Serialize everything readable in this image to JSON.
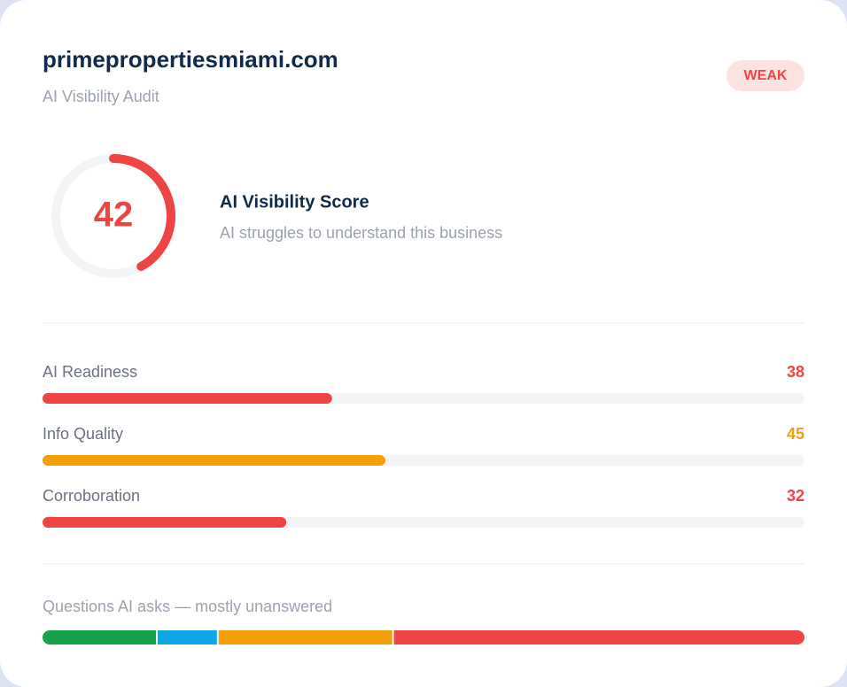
{
  "header": {
    "title": "primepropertiesmiami.com",
    "subtitle": "AI Visibility Audit",
    "badge": "WEAK"
  },
  "score": {
    "value": 42,
    "range": [
      0,
      100
    ],
    "color": "#ef4444",
    "label": "AI Visibility Score",
    "description": "AI struggles to understand this business"
  },
  "metrics": {
    "xlim": [
      0,
      100
    ],
    "items": [
      {
        "name": "AI Readiness",
        "value": 38,
        "color": "#ef4444"
      },
      {
        "name": "Info Quality",
        "value": 45,
        "color": "#f59e0b"
      },
      {
        "name": "Corroboration",
        "value": 32,
        "color": "#ef4444"
      }
    ]
  },
  "questions": {
    "label": "Questions AI asks — mostly unanswered",
    "xlim": [
      0,
      100
    ],
    "segments": [
      {
        "value": 15,
        "color": "#16a34a"
      },
      {
        "value": 8,
        "color": "#0ea5e9"
      },
      {
        "value": 23,
        "color": "#f59e0b"
      },
      {
        "value": 54,
        "color": "#ef4444"
      }
    ]
  }
}
